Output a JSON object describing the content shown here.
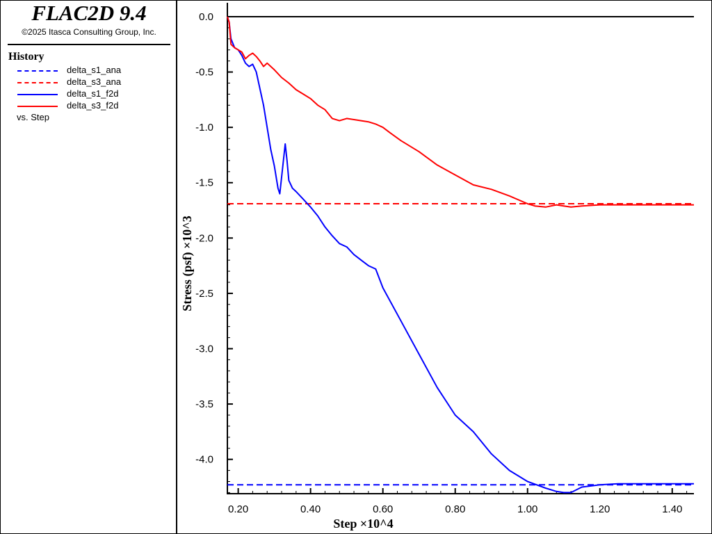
{
  "header": {
    "app_title": "FLAC2D 9.4",
    "copyright": "©2025 Itasca Consulting Group, Inc."
  },
  "legend": {
    "title": "History",
    "items": [
      {
        "label": "delta_s1_ana",
        "color": "#0000ff",
        "style": "dashed"
      },
      {
        "label": "delta_s3_ana",
        "color": "#ff0000",
        "style": "dashed"
      },
      {
        "label": "delta_s1_f2d",
        "color": "#0000ff",
        "style": "solid"
      },
      {
        "label": "delta_s3_f2d",
        "color": "#ff0000",
        "style": "solid"
      }
    ],
    "vs_label": "vs. Step"
  },
  "chart_data": {
    "type": "line",
    "xlabel": "Step ×10^4",
    "ylabel": "Stress (psf) ×10^3",
    "xlim": [
      0.17,
      1.46
    ],
    "ylim": [
      -4.31,
      0.0
    ],
    "xticks": [
      0.2,
      0.4,
      0.6,
      0.8,
      1.0,
      1.2,
      1.4
    ],
    "xtick_labels": [
      "0.20",
      "0.40",
      "0.60",
      "0.80",
      "1.00",
      "1.20",
      "1.40"
    ],
    "yticks": [
      0.0,
      -0.5,
      -1.0,
      -1.5,
      -2.0,
      -2.5,
      -3.0,
      -3.5,
      -4.0
    ],
    "ytick_labels": [
      "0.0",
      "-0.5",
      "-1.0",
      "-1.5",
      "-2.0",
      "-2.5",
      "-3.0",
      "-3.5",
      "-4.0"
    ],
    "grid": false,
    "zero_line": true,
    "series": [
      {
        "name": "delta_s1_ana",
        "color": "#0000ff",
        "style": "dashed",
        "x": [
          0.17,
          1.46
        ],
        "y": [
          -4.23,
          -4.23
        ]
      },
      {
        "name": "delta_s3_ana",
        "color": "#ff0000",
        "style": "dashed",
        "x": [
          0.17,
          1.46
        ],
        "y": [
          -1.69,
          -1.69
        ]
      },
      {
        "name": "delta_s1_f2d",
        "color": "#0000ff",
        "style": "solid",
        "x": [
          0.17,
          0.175,
          0.18,
          0.19,
          0.2,
          0.21,
          0.22,
          0.23,
          0.24,
          0.25,
          0.26,
          0.27,
          0.28,
          0.29,
          0.3,
          0.31,
          0.315,
          0.32,
          0.33,
          0.335,
          0.34,
          0.35,
          0.36,
          0.38,
          0.4,
          0.42,
          0.44,
          0.46,
          0.48,
          0.5,
          0.52,
          0.54,
          0.56,
          0.58,
          0.6,
          0.65,
          0.7,
          0.75,
          0.8,
          0.85,
          0.9,
          0.95,
          1.0,
          1.05,
          1.08,
          1.1,
          1.12,
          1.15,
          1.2,
          1.25,
          1.3,
          1.35,
          1.4,
          1.46
        ],
        "y": [
          0.0,
          -0.05,
          -0.2,
          -0.28,
          -0.3,
          -0.35,
          -0.42,
          -0.45,
          -0.43,
          -0.5,
          -0.65,
          -0.8,
          -1.0,
          -1.2,
          -1.35,
          -1.55,
          -1.6,
          -1.45,
          -1.15,
          -1.3,
          -1.48,
          -1.55,
          -1.58,
          -1.65,
          -1.72,
          -1.8,
          -1.9,
          -1.98,
          -2.05,
          -2.08,
          -2.15,
          -2.2,
          -2.25,
          -2.28,
          -2.45,
          -2.75,
          -3.05,
          -3.35,
          -3.6,
          -3.75,
          -3.95,
          -4.1,
          -4.2,
          -4.26,
          -4.29,
          -4.3,
          -4.3,
          -4.25,
          -4.23,
          -4.22,
          -4.22,
          -4.22,
          -4.22,
          -4.22
        ]
      },
      {
        "name": "delta_s3_f2d",
        "color": "#ff0000",
        "style": "solid",
        "x": [
          0.17,
          0.175,
          0.18,
          0.19,
          0.2,
          0.21,
          0.22,
          0.23,
          0.24,
          0.25,
          0.26,
          0.27,
          0.28,
          0.3,
          0.32,
          0.34,
          0.36,
          0.38,
          0.4,
          0.42,
          0.44,
          0.46,
          0.48,
          0.5,
          0.52,
          0.54,
          0.56,
          0.58,
          0.6,
          0.62,
          0.65,
          0.7,
          0.75,
          0.8,
          0.85,
          0.9,
          0.95,
          1.0,
          1.02,
          1.05,
          1.08,
          1.1,
          1.12,
          1.15,
          1.2,
          1.3,
          1.4,
          1.46
        ],
        "y": [
          0.0,
          -0.05,
          -0.25,
          -0.28,
          -0.3,
          -0.32,
          -0.38,
          -0.35,
          -0.33,
          -0.36,
          -0.4,
          -0.45,
          -0.42,
          -0.48,
          -0.55,
          -0.6,
          -0.66,
          -0.7,
          -0.74,
          -0.8,
          -0.84,
          -0.92,
          -0.94,
          -0.92,
          -0.93,
          -0.94,
          -0.95,
          -0.97,
          -1.0,
          -1.05,
          -1.12,
          -1.22,
          -1.34,
          -1.43,
          -1.52,
          -1.56,
          -1.62,
          -1.69,
          -1.71,
          -1.72,
          -1.7,
          -1.71,
          -1.72,
          -1.71,
          -1.7,
          -1.7,
          -1.7,
          -1.7
        ]
      }
    ]
  }
}
